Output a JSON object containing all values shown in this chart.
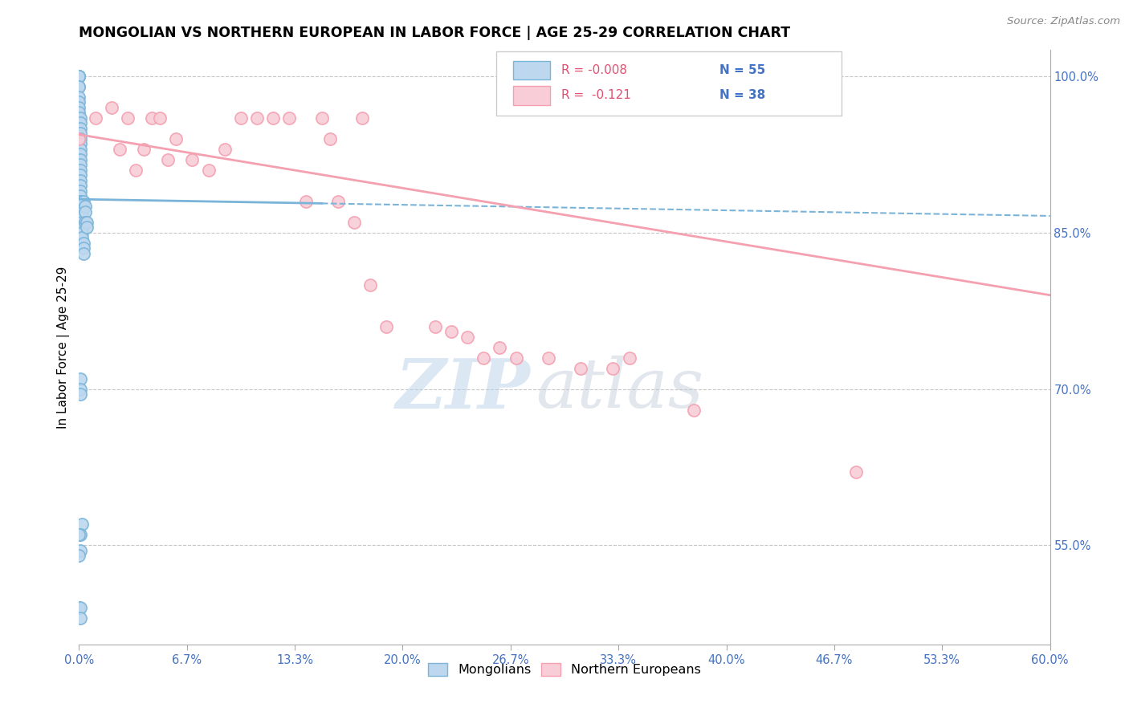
{
  "title": "MONGOLIAN VS NORTHERN EUROPEAN IN LABOR FORCE | AGE 25-29 CORRELATION CHART",
  "source": "Source: ZipAtlas.com",
  "ylabel": "In Labor Force | Age 25-29",
  "right_ytick_labels": [
    "100.0%",
    "85.0%",
    "70.0%",
    "55.0%"
  ],
  "right_ytick_values": [
    1.0,
    0.85,
    0.7,
    0.55
  ],
  "xlim": [
    0.0,
    0.6
  ],
  "ylim": [
    0.455,
    1.025
  ],
  "watermark_zip": "ZIP",
  "watermark_atlas": "atlas",
  "blue_color": "#7ab4d9",
  "pink_color": "#f4a0b0",
  "blue_fill": "#bdd7ee",
  "pink_fill": "#f8cdd7",
  "legend_r_color": "#e05070",
  "legend_n_color": "#4472c4",
  "mongolian_x": [
    0.0,
    0.0,
    0.0,
    0.0,
    0.0,
    0.0,
    0.0,
    0.0,
    0.0,
    0.0,
    0.001,
    0.001,
    0.001,
    0.001,
    0.001,
    0.001,
    0.001,
    0.001,
    0.001,
    0.001,
    0.001,
    0.001,
    0.001,
    0.001,
    0.001,
    0.001,
    0.001,
    0.002,
    0.002,
    0.002,
    0.002,
    0.002,
    0.002,
    0.002,
    0.002,
    0.003,
    0.003,
    0.003,
    0.003,
    0.004,
    0.004,
    0.004,
    0.005,
    0.005,
    0.001,
    0.001,
    0.001,
    0.002,
    0.001,
    0.001,
    0.0,
    0.0,
    0.0,
    0.001,
    0.001
  ],
  "mongolian_y": [
    1.0,
    1.0,
    1.0,
    1.0,
    0.99,
    0.99,
    0.98,
    0.975,
    0.97,
    0.965,
    0.96,
    0.955,
    0.95,
    0.945,
    0.94,
    0.935,
    0.93,
    0.925,
    0.92,
    0.915,
    0.91,
    0.905,
    0.9,
    0.895,
    0.89,
    0.885,
    0.88,
    0.88,
    0.875,
    0.87,
    0.865,
    0.86,
    0.855,
    0.85,
    0.845,
    0.84,
    0.835,
    0.83,
    0.88,
    0.875,
    0.87,
    0.86,
    0.86,
    0.855,
    0.71,
    0.7,
    0.695,
    0.57,
    0.56,
    0.545,
    0.56,
    0.54,
    0.49,
    0.49,
    0.48
  ],
  "northern_x": [
    0.0,
    0.01,
    0.02,
    0.025,
    0.03,
    0.035,
    0.04,
    0.045,
    0.05,
    0.055,
    0.06,
    0.07,
    0.08,
    0.09,
    0.1,
    0.11,
    0.12,
    0.13,
    0.14,
    0.15,
    0.155,
    0.16,
    0.17,
    0.175,
    0.18,
    0.19,
    0.22,
    0.23,
    0.24,
    0.25,
    0.26,
    0.27,
    0.29,
    0.31,
    0.33,
    0.34,
    0.38,
    0.48
  ],
  "northern_y": [
    0.94,
    0.96,
    0.97,
    0.93,
    0.96,
    0.91,
    0.93,
    0.96,
    0.96,
    0.92,
    0.94,
    0.92,
    0.91,
    0.93,
    0.96,
    0.96,
    0.96,
    0.96,
    0.88,
    0.96,
    0.94,
    0.88,
    0.86,
    0.96,
    0.8,
    0.76,
    0.76,
    0.755,
    0.75,
    0.73,
    0.74,
    0.73,
    0.73,
    0.72,
    0.72,
    0.73,
    0.68,
    0.62
  ],
  "blue_trend_x": [
    0.0,
    0.15
  ],
  "blue_trend_y": [
    0.882,
    0.878
  ],
  "pink_trend_x": [
    0.0,
    0.6
  ],
  "pink_trend_y": [
    0.944,
    0.79
  ]
}
